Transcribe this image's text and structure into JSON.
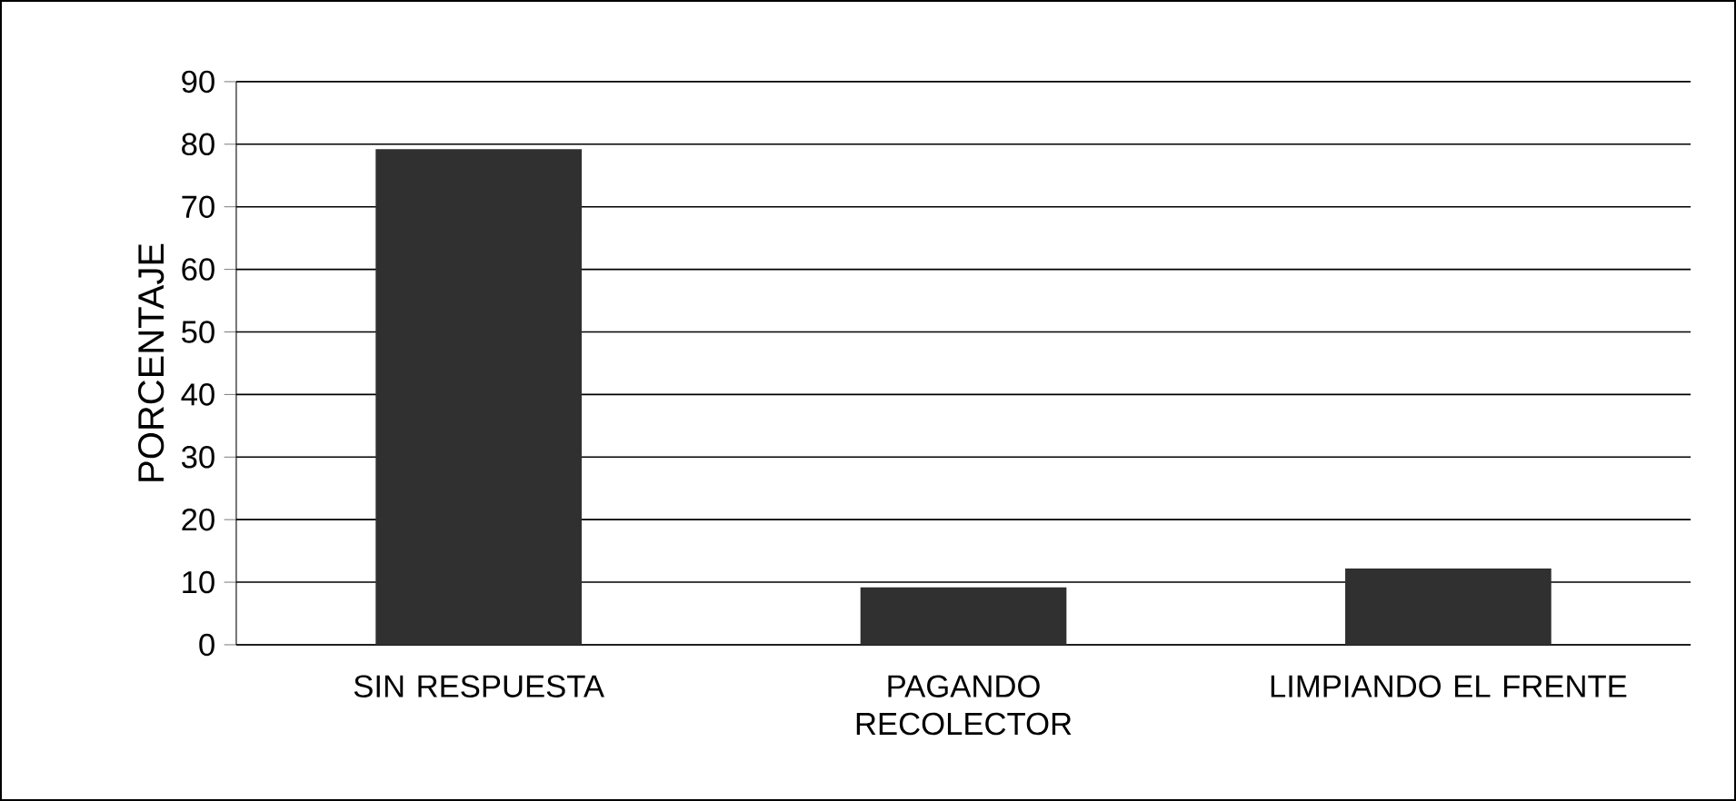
{
  "chart_data": {
    "type": "bar",
    "ylabel": "PORCENTAJE",
    "categories": [
      "SIN RESPUESTA",
      "PAGANDO RECOLECTOR",
      "LIMPIANDO EL FRENTE"
    ],
    "values": [
      79,
      9,
      12
    ],
    "color": "#303030",
    "ylim": [
      0,
      90
    ],
    "yticks": [
      0,
      10,
      20,
      30,
      40,
      50,
      60,
      70,
      80,
      90
    ],
    "grid": "y"
  }
}
